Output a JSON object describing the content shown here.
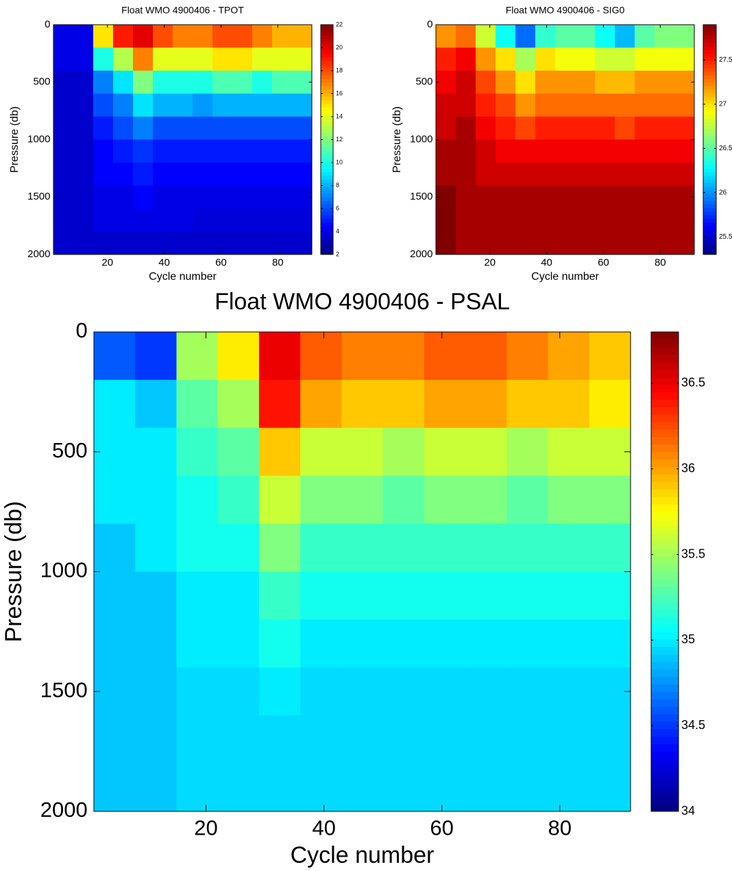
{
  "chart_data": [
    {
      "type": "heatmap",
      "title": "Float WMO 4900406 - TPOT",
      "xlabel": "Cycle number",
      "ylabel": "Pressure (db)",
      "colormap": "jet",
      "y_reversed": true,
      "xlim": [
        1,
        92
      ],
      "xticks": [
        20,
        40,
        60,
        80
      ],
      "ylim": [
        0,
        2000
      ],
      "yticks": [
        0,
        500,
        1000,
        1500,
        2000
      ],
      "clim": [
        2,
        22
      ],
      "cticks": [
        2,
        4,
        6,
        8,
        10,
        12,
        14,
        16,
        18,
        20,
        22
      ],
      "x": [
        4.5,
        11.5,
        18.5,
        25.5,
        32.5,
        39.5,
        46.5,
        53.5,
        60.5,
        67.5,
        74.5,
        81.5,
        88.5
      ],
      "y": [
        100,
        300,
        500,
        700,
        900,
        1100,
        1300,
        1500,
        1700,
        1900
      ],
      "values": [
        [
          4,
          4,
          15,
          19,
          20,
          18,
          17,
          17,
          18,
          18,
          17,
          16,
          16
        ],
        [
          4,
          4,
          10,
          13,
          17,
          14,
          14,
          14,
          15,
          15,
          14,
          14,
          14
        ],
        [
          3.5,
          3.5,
          7,
          9,
          12,
          10,
          10,
          10,
          11,
          11,
          10,
          11,
          11
        ],
        [
          3.5,
          3.5,
          6,
          7,
          9,
          8,
          8,
          7.5,
          8,
          8,
          8,
          8,
          8
        ],
        [
          3.5,
          3.5,
          5,
          6,
          7,
          6,
          6,
          6,
          6,
          6,
          6,
          6,
          6
        ],
        [
          3.5,
          3.5,
          4.5,
          5,
          5.5,
          5,
          5,
          5,
          5,
          5,
          5,
          5,
          5
        ],
        [
          3.5,
          3.5,
          4.5,
          4.5,
          5,
          4.5,
          4.5,
          4.5,
          4.5,
          4.5,
          4.5,
          4.5,
          4.5
        ],
        [
          3.5,
          3.5,
          4,
          4,
          4.5,
          4,
          4,
          4,
          4,
          4,
          4,
          4,
          4
        ],
        [
          3.5,
          3.5,
          4,
          4,
          4,
          4,
          4,
          3.8,
          3.8,
          3.8,
          3.8,
          3.8,
          3.8
        ],
        [
          3.5,
          3.5,
          3.5,
          3.5,
          3.5,
          3.5,
          3.5,
          3.5,
          3.5,
          3.5,
          3.5,
          3.5,
          3.5
        ]
      ]
    },
    {
      "type": "heatmap",
      "title": "Float WMO 4900406 - SIG0",
      "xlabel": "Cycle number",
      "ylabel": "Pressure (db)",
      "colormap": "jet",
      "y_reversed": true,
      "xlim": [
        1,
        92
      ],
      "xticks": [
        20,
        40,
        60,
        80
      ],
      "ylim": [
        0,
        2000
      ],
      "yticks": [
        0,
        500,
        1000,
        1500,
        2000
      ],
      "clim": [
        25.3,
        27.9
      ],
      "cticks": [
        25.5,
        26,
        26.5,
        27,
        27.5
      ],
      "x": [
        4.5,
        11.5,
        18.5,
        25.5,
        32.5,
        39.5,
        46.5,
        53.5,
        60.5,
        67.5,
        74.5,
        81.5,
        88.5
      ],
      "y": [
        100,
        300,
        500,
        700,
        900,
        1100,
        1300,
        1500,
        1700,
        1900
      ],
      "values": [
        [
          27.2,
          27.3,
          26.8,
          26.3,
          25.9,
          26.4,
          26.5,
          26.5,
          26.3,
          26.1,
          26.5,
          26.6,
          26.6
        ],
        [
          27.5,
          27.6,
          27.2,
          27.0,
          26.7,
          27.0,
          26.9,
          26.9,
          26.8,
          26.8,
          26.9,
          26.9,
          26.9
        ],
        [
          27.6,
          27.7,
          27.4,
          27.2,
          27.0,
          27.2,
          27.2,
          27.2,
          27.1,
          27.1,
          27.2,
          27.2,
          27.2
        ],
        [
          27.7,
          27.7,
          27.5,
          27.4,
          27.2,
          27.3,
          27.3,
          27.3,
          27.3,
          27.3,
          27.3,
          27.3,
          27.3
        ],
        [
          27.7,
          27.8,
          27.6,
          27.5,
          27.4,
          27.5,
          27.5,
          27.5,
          27.5,
          27.4,
          27.5,
          27.5,
          27.5
        ],
        [
          27.8,
          27.8,
          27.7,
          27.6,
          27.6,
          27.6,
          27.6,
          27.6,
          27.6,
          27.6,
          27.6,
          27.6,
          27.6
        ],
        [
          27.8,
          27.8,
          27.7,
          27.7,
          27.7,
          27.7,
          27.7,
          27.7,
          27.7,
          27.7,
          27.7,
          27.7,
          27.7
        ],
        [
          27.9,
          27.8,
          27.8,
          27.8,
          27.8,
          27.8,
          27.8,
          27.8,
          27.8,
          27.8,
          27.8,
          27.8,
          27.8
        ],
        [
          27.9,
          27.8,
          27.8,
          27.8,
          27.8,
          27.8,
          27.8,
          27.8,
          27.8,
          27.8,
          27.8,
          27.8,
          27.8
        ],
        [
          27.9,
          27.8,
          27.8,
          27.8,
          27.8,
          27.8,
          27.8,
          27.8,
          27.8,
          27.8,
          27.8,
          27.8,
          27.8
        ]
      ]
    },
    {
      "type": "heatmap",
      "title": "Float WMO 4900406 - PSAL",
      "xlabel": "Cycle number",
      "ylabel": "Pressure (db)",
      "colormap": "jet",
      "y_reversed": true,
      "xlim": [
        1,
        92
      ],
      "xticks": [
        20,
        40,
        60,
        80
      ],
      "ylim": [
        0,
        2000
      ],
      "yticks": [
        0,
        500,
        1000,
        1500,
        2000
      ],
      "clim": [
        34,
        36.8
      ],
      "cticks": [
        34,
        34.5,
        35,
        35.5,
        36,
        36.5
      ],
      "x": [
        4.5,
        11.5,
        18.5,
        25.5,
        32.5,
        39.5,
        46.5,
        53.5,
        60.5,
        67.5,
        74.5,
        81.5,
        88.5
      ],
      "y": [
        100,
        300,
        500,
        700,
        900,
        1100,
        1300,
        1500,
        1700,
        1900
      ],
      "values": [
        [
          34.6,
          34.5,
          35.5,
          35.8,
          36.5,
          36.2,
          36.1,
          36.1,
          36.2,
          36.2,
          36.1,
          36.0,
          35.9
        ],
        [
          35.0,
          34.9,
          35.3,
          35.5,
          36.4,
          36.0,
          35.9,
          35.9,
          36.0,
          36.0,
          35.9,
          35.9,
          35.8
        ],
        [
          35.0,
          35.0,
          35.2,
          35.3,
          35.9,
          35.6,
          35.6,
          35.5,
          35.6,
          35.6,
          35.5,
          35.6,
          35.6
        ],
        [
          35.0,
          35.0,
          35.1,
          35.2,
          35.6,
          35.4,
          35.4,
          35.3,
          35.4,
          35.4,
          35.3,
          35.4,
          35.4
        ],
        [
          34.9,
          35.0,
          35.1,
          35.1,
          35.4,
          35.2,
          35.2,
          35.2,
          35.2,
          35.2,
          35.2,
          35.2,
          35.2
        ],
        [
          34.9,
          34.9,
          35.0,
          35.0,
          35.2,
          35.1,
          35.1,
          35.1,
          35.1,
          35.1,
          35.1,
          35.1,
          35.1
        ],
        [
          34.9,
          34.9,
          35.0,
          35.0,
          35.1,
          35.0,
          35.0,
          35.0,
          35.0,
          35.0,
          35.0,
          35.0,
          35.0
        ],
        [
          34.9,
          34.9,
          34.95,
          34.95,
          35.0,
          34.95,
          34.95,
          34.95,
          34.95,
          34.95,
          34.95,
          34.95,
          34.95
        ],
        [
          34.9,
          34.9,
          34.95,
          34.95,
          34.95,
          34.95,
          34.95,
          34.95,
          34.95,
          34.95,
          34.95,
          34.95,
          34.95
        ],
        [
          34.9,
          34.9,
          34.95,
          34.95,
          34.95,
          34.95,
          34.95,
          34.95,
          34.95,
          34.95,
          34.95,
          34.95,
          34.95
        ]
      ]
    }
  ]
}
